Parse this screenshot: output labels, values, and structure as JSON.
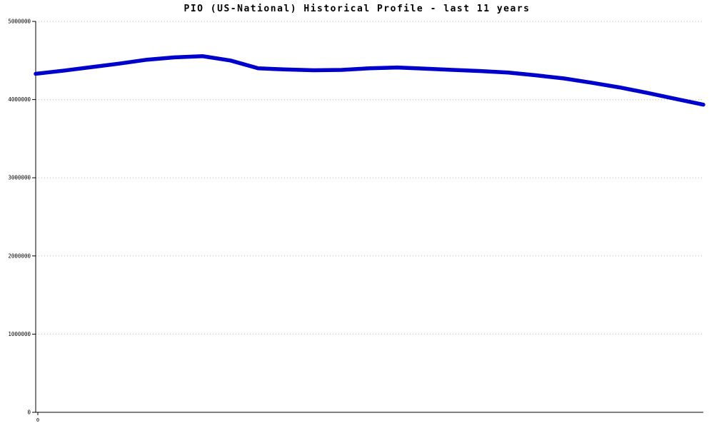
{
  "chart_data": {
    "type": "line",
    "title": "PIO (US-National) Historical Profile - last 11 years",
    "xlabel": "",
    "ylabel": "",
    "ylim": [
      0,
      5000000
    ],
    "yticks": [
      0,
      1000000,
      2000000,
      3000000,
      4000000,
      5000000
    ],
    "ytick_labels": [
      "0",
      "1000000",
      "2000000",
      "3000000",
      "4000000",
      "5000000"
    ],
    "x_tick_labels": [
      "0"
    ],
    "grid": "horizontal-dotted",
    "legend": "none",
    "line_color": "#0000cc",
    "grid_color": "#bbbbbb",
    "axis_color": "#000000",
    "series": [
      {
        "name": "PIO",
        "x": [
          0,
          1,
          2,
          3,
          4,
          5,
          6,
          7,
          8,
          9,
          10,
          11,
          12,
          13,
          14,
          15,
          16,
          17,
          18,
          19,
          20,
          21,
          22,
          23,
          24
        ],
        "y": [
          4330000,
          4370000,
          4415000,
          4460000,
          4510000,
          4540000,
          4555000,
          4500000,
          4400000,
          4385000,
          4375000,
          4380000,
          4400000,
          4410000,
          4395000,
          4380000,
          4365000,
          4345000,
          4310000,
          4270000,
          4215000,
          4155000,
          4085000,
          4010000,
          3935000
        ]
      }
    ]
  }
}
